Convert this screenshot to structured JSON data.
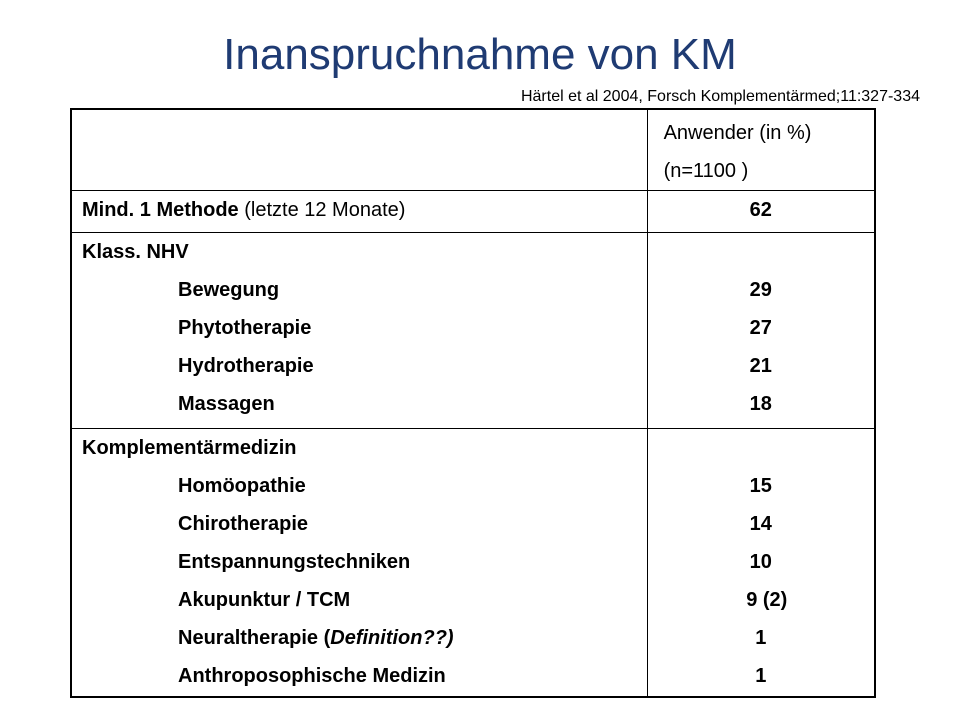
{
  "title": "Inanspruchnahme von KM",
  "citation": "Härtel et al 2004, Forsch Komplementärmed;11:327-334",
  "table": {
    "header": {
      "line1": "Anwender (in %)",
      "line2": "(n=1100 )"
    },
    "row_mind": {
      "label_bold": "Mind. 1 Methode",
      "label_normal": " (letzte 12 Monate)",
      "value": "62"
    },
    "group_nhv": {
      "category": "Klass. NHV",
      "items": [
        {
          "label": "Bewegung",
          "value": "29"
        },
        {
          "label": "Phytotherapie",
          "value": "27"
        },
        {
          "label": "Hydrotherapie",
          "value": "21"
        },
        {
          "label": "Massagen",
          "value": "18"
        }
      ]
    },
    "group_km": {
      "category": "Komplementärmedizin",
      "items": [
        {
          "label": "Homöopathie",
          "value": "15"
        },
        {
          "label": "Chirotherapie",
          "value": "14"
        },
        {
          "label": "Entspannungstechniken",
          "value": "10"
        },
        {
          "label": "Akupunktur / TCM",
          "value": "9 (2)"
        },
        {
          "label_prefix": "Neuraltherapie (",
          "label_italic": "Definition??)",
          "value": "1"
        },
        {
          "label": "Anthroposophische Medizin",
          "value": "1"
        }
      ]
    }
  }
}
